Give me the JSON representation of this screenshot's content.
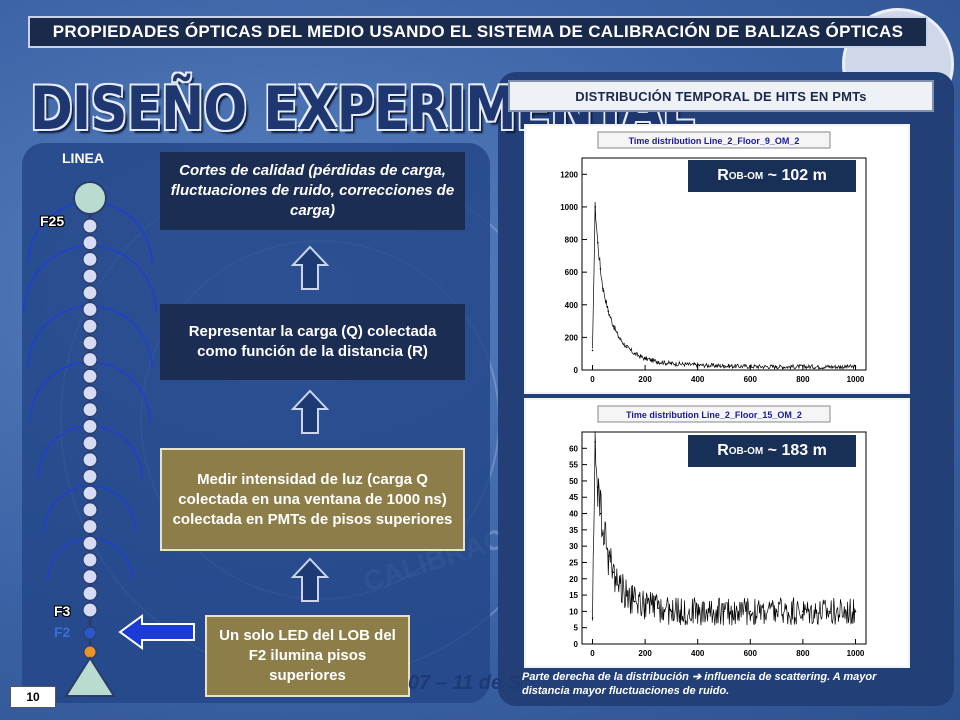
{
  "header": {
    "title": "PROPIEDADES ÓPTICAS DEL MEDIO USANDO EL SISTEMA DE CALIBRACIÓN DE BALIZAS ÓPTICAS"
  },
  "slide": {
    "big_title": "DISEÑO EXPERIMENTAL",
    "page_number": "10",
    "footer_fragment": "07 – 11 de S"
  },
  "line_diagram": {
    "linea_label": "LINEA",
    "floor_top": "F25",
    "floor_f3": "F3",
    "floor_f2": "F2",
    "colors": {
      "beads": "#d6dcf4",
      "led": "#f0922a",
      "f2_bead": "#2a58c8",
      "arcs": "#1f3fd0"
    }
  },
  "flow": {
    "step_quality": "Cortes de calidad (pérdidas de carga, fluctuaciones de ruido, correcciones de carga)",
    "step_represent": "Representar la carga (Q) colectada como función de la distancia (R)",
    "step_measure": "Medir intensidad de luz (carga Q colectada en una ventana de 1000 ns) colectada en PMTs de pisos superiores",
    "step_led": "Un solo LED del LOB del F2 ilumina pisos superiores"
  },
  "right": {
    "header": "DISTRIBUCIÓN TEMPORAL DE HITS EN PMTs",
    "caption": "Parte derecha de la distribución ➔ influencia de scattering. A mayor distancia mayor fluctuaciones de ruido.",
    "plot1": {
      "r_main": "R",
      "r_sub": "OB-OM",
      "r_value": " ~ 102 m"
    },
    "plot2": {
      "r_main": "R",
      "r_sub": "OB-OM",
      "r_value": " ~ 183 m"
    }
  },
  "chart_data": [
    {
      "type": "line",
      "title": "Time distribution Line_2_Floor_9_OM_2",
      "xlabel": "",
      "ylabel": "",
      "xlim": [
        -40,
        1040
      ],
      "ylim": [
        0,
        1300
      ],
      "xticks": [
        "0",
        "200",
        "400",
        "600",
        "800",
        "1000"
      ],
      "yticks": [
        "0",
        "200",
        "400",
        "600",
        "800",
        "1000",
        "1200"
      ],
      "series": [
        {
          "x": [
            0,
            10,
            20,
            30,
            40,
            60,
            80,
            100,
            130,
            160,
            200,
            250,
            300,
            400,
            500,
            600,
            700,
            800,
            900,
            1000
          ],
          "values": [
            120,
            1000,
            780,
            620,
            500,
            360,
            270,
            200,
            140,
            100,
            70,
            50,
            40,
            30,
            25,
            22,
            20,
            20,
            20,
            20
          ]
        }
      ]
    },
    {
      "type": "line",
      "title": "Time distribution Line_2_Floor_15_OM_2",
      "xlabel": "",
      "ylabel": "",
      "xlim": [
        -40,
        1040
      ],
      "ylim": [
        0,
        65
      ],
      "xticks": [
        "0",
        "200",
        "400",
        "600",
        "800",
        "1000"
      ],
      "yticks": [
        "0",
        "5",
        "10",
        "15",
        "20",
        "25",
        "30",
        "35",
        "40",
        "45",
        "50",
        "55",
        "60"
      ],
      "series": [
        {
          "x": [
            0,
            10,
            20,
            30,
            40,
            60,
            80,
            100,
            130,
            160,
            200,
            250,
            300,
            400,
            500,
            600,
            700,
            800,
            900,
            1000
          ],
          "values": [
            8,
            62,
            48,
            40,
            34,
            27,
            22,
            18,
            15,
            13,
            12,
            11,
            10,
            10,
            10,
            10,
            10,
            10,
            10,
            10
          ]
        }
      ]
    }
  ]
}
